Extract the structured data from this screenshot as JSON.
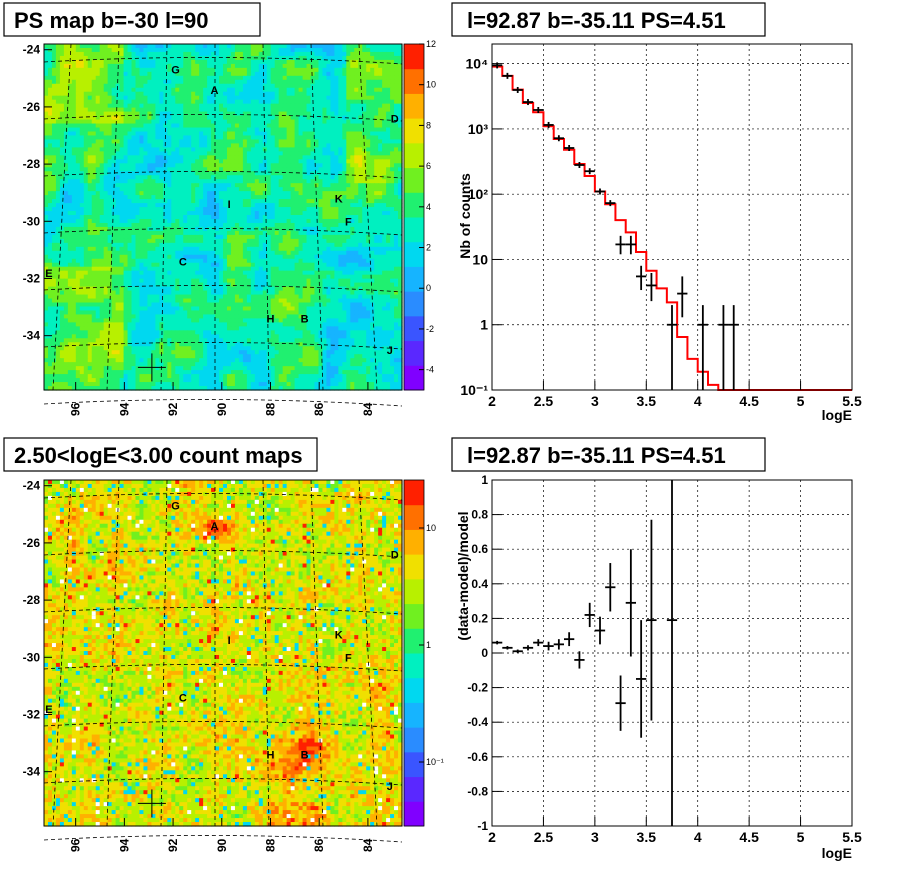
{
  "colors": {
    "frame": "#000000",
    "model_line": "#ff0000",
    "data_points": "#000000",
    "grid": "#000000",
    "background": "#ffffff",
    "palette": [
      "#8000ff",
      "#5a28ff",
      "#3a55ff",
      "#2a8cff",
      "#16b4ff",
      "#00d8f0",
      "#00f0c0",
      "#20f070",
      "#70f020",
      "#b8f000",
      "#f0e000",
      "#ffb000",
      "#ff7000",
      "#ff2000"
    ]
  },
  "chart_data": [
    {
      "type": "heatmap",
      "title": "PS map b=-30 l=90",
      "xlim": [
        97.3,
        82.6
      ],
      "ylim": [
        -35.9,
        -23.8
      ],
      "x_ticks": [
        "96",
        "94",
        "92",
        "90",
        "88",
        "86",
        "84"
      ],
      "y_ticks": [
        "-24",
        "-26",
        "-28",
        "-30",
        "-32",
        "-34"
      ],
      "colorbar": {
        "scale": "linear",
        "range": [
          -5,
          12
        ],
        "ticks": [
          "12",
          "10",
          "8",
          "6",
          "4",
          "2",
          "0",
          "-2",
          "-4"
        ]
      },
      "point_labels": [
        "G",
        "A",
        "D",
        "I",
        "K",
        "F",
        "C",
        "E",
        "H",
        "B",
        "J"
      ],
      "marker": {
        "l": 92.87,
        "b": -35.11
      }
    },
    {
      "type": "line",
      "title": "l=92.87 b=-35.11 PS=4.51",
      "xlabel": "logE",
      "ylabel": "Nb of counts",
      "y_scale": "log",
      "xlim": [
        2,
        5.5
      ],
      "ylim": [
        0.1,
        20000
      ],
      "x_ticks": [
        "2",
        "2.5",
        "3",
        "3.5",
        "4",
        "4.5",
        "5",
        "5.5"
      ],
      "y_ticks": [
        "10⁻¹",
        "1",
        "10",
        "10²",
        "10³",
        "10⁴"
      ],
      "grid": true,
      "model": {
        "bin_edges": [
          2.0,
          2.1,
          2.2,
          2.3,
          2.4,
          2.5,
          2.6,
          2.7,
          2.8,
          2.9,
          3.0,
          3.1,
          3.2,
          3.3,
          3.4,
          3.5,
          3.6,
          3.7,
          3.8,
          3.9,
          4.0,
          4.1,
          4.2,
          4.3,
          4.4,
          4.5,
          4.6,
          4.7,
          4.8,
          4.9,
          5.0,
          5.1,
          5.2,
          5.3,
          5.4,
          5.5
        ],
        "values": [
          9000,
          6500,
          4000,
          2500,
          1800,
          1100,
          700,
          480,
          290,
          190,
          110,
          70,
          40,
          26,
          13,
          6.7,
          3.6,
          2.2,
          0.65,
          0.3,
          0.19,
          0.12,
          0.1,
          0.1,
          0.1,
          0.1,
          0.1,
          0.1,
          0.1,
          0.1,
          0.1,
          0.1,
          0.1,
          0.1,
          0.1
        ]
      },
      "data": [
        {
          "x": 2.05,
          "y": 9400
        },
        {
          "x": 2.15,
          "y": 6500
        },
        {
          "x": 2.25,
          "y": 3950
        },
        {
          "x": 2.35,
          "y": 2580
        },
        {
          "x": 2.45,
          "y": 1950
        },
        {
          "x": 2.55,
          "y": 1150
        },
        {
          "x": 2.65,
          "y": 720
        },
        {
          "x": 2.75,
          "y": 510
        },
        {
          "x": 2.85,
          "y": 280
        },
        {
          "x": 2.95,
          "y": 225
        },
        {
          "x": 3.05,
          "y": 110
        },
        {
          "x": 3.15,
          "y": 73
        },
        {
          "x": 3.25,
          "y": 17,
          "ylo": 12,
          "yhi": 23
        },
        {
          "x": 3.35,
          "y": 17,
          "ylo": 12,
          "yhi": 23
        },
        {
          "x": 3.45,
          "y": 5.5,
          "ylo": 3.4,
          "yhi": 8
        },
        {
          "x": 3.55,
          "y": 4,
          "ylo": 2.3,
          "yhi": 6.2
        },
        {
          "x": 3.75,
          "y": 1,
          "ylo": 0.1,
          "yhi": 2
        },
        {
          "x": 3.85,
          "y": 3,
          "ylo": 1.3,
          "yhi": 5.5
        },
        {
          "x": 4.05,
          "y": 1,
          "ylo": 0.1,
          "yhi": 2
        },
        {
          "x": 4.25,
          "y": 1,
          "ylo": 0.1,
          "yhi": 2
        },
        {
          "x": 4.35,
          "y": 1,
          "ylo": 0.1,
          "yhi": 2
        }
      ]
    },
    {
      "type": "heatmap",
      "title": "2.50<logE<3.00 count maps",
      "xlim": [
        97.3,
        82.6
      ],
      "ylim": [
        -35.9,
        -23.8
      ],
      "x_ticks": [
        "96",
        "94",
        "92",
        "90",
        "88",
        "86",
        "84"
      ],
      "y_ticks": [
        "-24",
        "-26",
        "-28",
        "-30",
        "-32",
        "-34"
      ],
      "colorbar": {
        "scale": "log",
        "ticks": [
          "10",
          "1",
          "10⁻¹"
        ]
      },
      "point_labels": [
        "G",
        "A",
        "D",
        "I",
        "K",
        "F",
        "C",
        "E",
        "H",
        "B",
        "J"
      ],
      "marker": {
        "l": 92.87,
        "b": -35.11
      }
    },
    {
      "type": "scatter",
      "title": "l=92.87 b=-35.11 PS=4.51",
      "xlabel": "logE",
      "ylabel": "(data-model)/model",
      "xlim": [
        2,
        5.5
      ],
      "ylim": [
        -1,
        1
      ],
      "x_ticks": [
        "2",
        "2.5",
        "3",
        "3.5",
        "4",
        "4.5",
        "5",
        "5.5"
      ],
      "y_ticks": [
        "1",
        "0.8",
        "0.6",
        "0.4",
        "0.2",
        "0",
        "-0.2",
        "-0.4",
        "-0.6",
        "-0.8",
        "-1"
      ],
      "grid": true,
      "data": [
        {
          "x": 2.05,
          "y": 0.06,
          "err": 0.01
        },
        {
          "x": 2.15,
          "y": 0.03,
          "err": 0.01
        },
        {
          "x": 2.25,
          "y": 0.01,
          "err": 0.01
        },
        {
          "x": 2.35,
          "y": 0.03,
          "err": 0.015
        },
        {
          "x": 2.45,
          "y": 0.06,
          "err": 0.02
        },
        {
          "x": 2.55,
          "y": 0.04,
          "err": 0.025
        },
        {
          "x": 2.65,
          "y": 0.05,
          "err": 0.03
        },
        {
          "x": 2.75,
          "y": 0.08,
          "err": 0.04
        },
        {
          "x": 2.85,
          "y": -0.04,
          "err": 0.05
        },
        {
          "x": 2.95,
          "y": 0.22,
          "err": 0.07
        },
        {
          "x": 3.05,
          "y": 0.13,
          "err": 0.08
        },
        {
          "x": 3.15,
          "y": 0.38,
          "err": 0.14
        },
        {
          "x": 3.25,
          "y": -0.29,
          "err": 0.16
        },
        {
          "x": 3.35,
          "y": 0.29,
          "err": 0.31
        },
        {
          "x": 3.45,
          "y": -0.15,
          "err": 0.34
        },
        {
          "x": 3.55,
          "y": 0.19,
          "err": 0.58
        },
        {
          "x": 3.75,
          "y": 0.19,
          "err": 1.6
        }
      ]
    }
  ]
}
